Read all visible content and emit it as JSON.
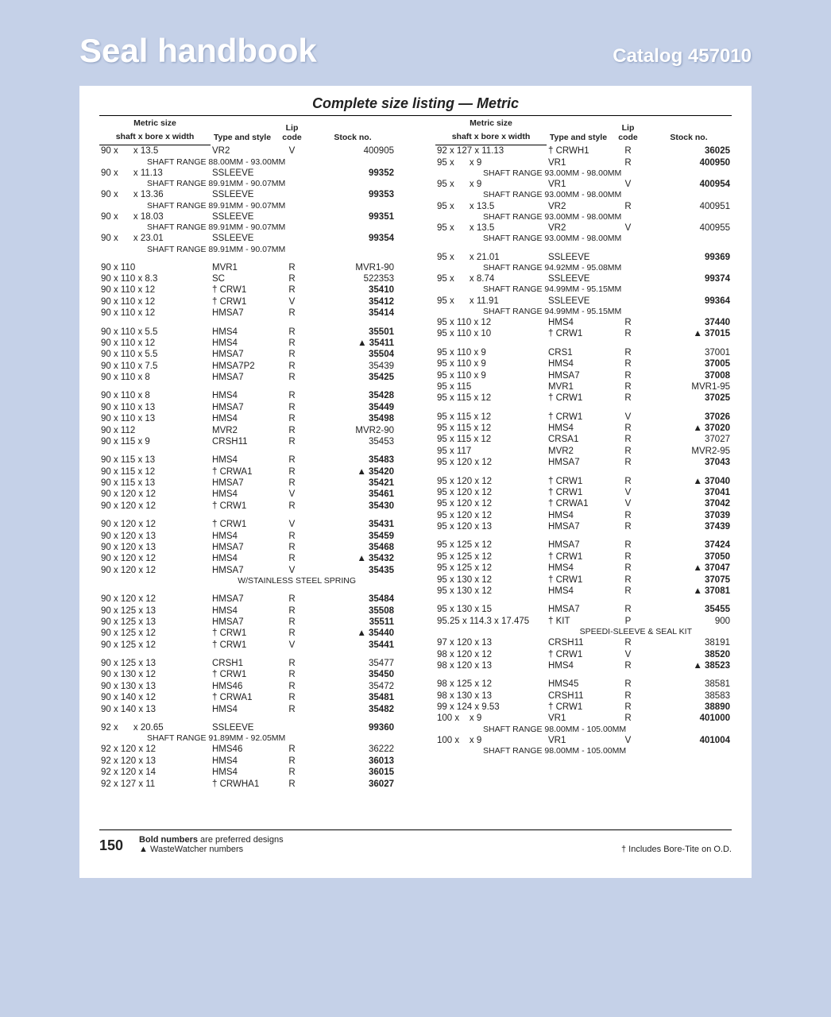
{
  "header": {
    "title": "Seal handbook",
    "catalog": "Catalog 457010"
  },
  "subtitle": "Complete size listing — Metric",
  "columns": {
    "size_label": "Metric size",
    "size_sub": "shaft x bore x width",
    "type_label": "Type and style",
    "lip_label": "Lip code",
    "stock_label": "Stock no."
  },
  "footer": {
    "page": "150",
    "note1": "Bold numbers",
    "note1b": " are preferred designs",
    "note2": "▲ WasteWatcher numbers",
    "note3": "† Includes Bore-Tite on O.D."
  },
  "left": [
    {
      "s": "90 x        x 13.5",
      "t": "VR2",
      "l": "V",
      "n": "400905",
      "b": 0
    },
    {
      "range": "SHAFT RANGE 88.00MM - 93.00MM"
    },
    {
      "s": "90 x        x 11.13",
      "t": "SSLEEVE",
      "l": "",
      "n": "99352",
      "b": 1
    },
    {
      "range": "SHAFT RANGE 89.91MM - 90.07MM"
    },
    {
      "s": "90 x        x 13.36",
      "t": "SSLEEVE",
      "l": "",
      "n": "99353",
      "b": 1
    },
    {
      "range": "SHAFT RANGE 89.91MM - 90.07MM"
    },
    {
      "s": "90 x        x 18.03",
      "t": "SSLEEVE",
      "l": "",
      "n": "99351",
      "b": 1
    },
    {
      "range": "SHAFT RANGE 89.91MM - 90.07MM"
    },
    {
      "s": "90 x        x 23.01",
      "t": "SSLEEVE",
      "l": "",
      "n": "99354",
      "b": 1
    },
    {
      "range": "SHAFT RANGE 89.91MM - 90.07MM"
    },
    {
      "spacer": 1
    },
    {
      "s": "90 x 110",
      "t": "MVR1",
      "l": "R",
      "n": "MVR1-90",
      "b": 0
    },
    {
      "s": "90 x 110 x 8.3",
      "t": "SC",
      "l": "R",
      "n": "522353",
      "b": 0
    },
    {
      "s": "90 x 110 x 12",
      "t": "† CRW1",
      "l": "R",
      "n": "35410",
      "b": 1
    },
    {
      "s": "90 x 110 x 12",
      "t": "† CRW1",
      "l": "V",
      "n": "35412",
      "b": 1
    },
    {
      "s": "90 x 110 x 12",
      "t": "HMSA7",
      "l": "R",
      "n": "35414",
      "b": 1
    },
    {
      "spacer": 1
    },
    {
      "s": "90 x 110 x 5.5",
      "t": "HMS4",
      "l": "R",
      "n": "35501",
      "b": 1
    },
    {
      "s": "90 x 110 x 12",
      "t": "HMS4",
      "l": "R",
      "n": "▲ 35411",
      "b": 1
    },
    {
      "s": "90 x 110 x 5.5",
      "t": "HMSA7",
      "l": "R",
      "n": "35504",
      "b": 1
    },
    {
      "s": "90 x 110 x 7.5",
      "t": "HMSA7P2",
      "l": "R",
      "n": "35439",
      "b": 0
    },
    {
      "s": "90 x 110 x 8",
      "t": "HMSA7",
      "l": "R",
      "n": "35425",
      "b": 1
    },
    {
      "spacer": 1
    },
    {
      "s": "90 x 110 x 8",
      "t": "HMS4",
      "l": "R",
      "n": "35428",
      "b": 1
    },
    {
      "s": "90 x 110 x 13",
      "t": "HMSA7",
      "l": "R",
      "n": "35449",
      "b": 1
    },
    {
      "s": "90 x 110 x 13",
      "t": "HMS4",
      "l": "R",
      "n": "35498",
      "b": 1
    },
    {
      "s": "90 x 112",
      "t": "MVR2",
      "l": "R",
      "n": "MVR2-90",
      "b": 0
    },
    {
      "s": "90 x 115 x 9",
      "t": "CRSH11",
      "l": "R",
      "n": "35453",
      "b": 0
    },
    {
      "spacer": 1
    },
    {
      "s": "90 x 115 x 13",
      "t": "HMS4",
      "l": "R",
      "n": "35483",
      "b": 1
    },
    {
      "s": "90 x 115 x 12",
      "t": "† CRWA1",
      "l": "R",
      "n": "▲ 35420",
      "b": 1
    },
    {
      "s": "90 x 115 x 13",
      "t": "HMSA7",
      "l": "R",
      "n": "35421",
      "b": 1
    },
    {
      "s": "90 x 120 x 12",
      "t": "HMS4",
      "l": "V",
      "n": "35461",
      "b": 1
    },
    {
      "s": "90 x 120 x 12",
      "t": "† CRW1",
      "l": "R",
      "n": "35430",
      "b": 1
    },
    {
      "spacer": 1
    },
    {
      "s": "90 x 120 x 12",
      "t": "† CRW1",
      "l": "V",
      "n": "35431",
      "b": 1
    },
    {
      "s": "90 x 120 x 13",
      "t": "HMS4",
      "l": "R",
      "n": "35459",
      "b": 1
    },
    {
      "s": "90 x 120 x 13",
      "t": "HMSA7",
      "l": "R",
      "n": "35468",
      "b": 1
    },
    {
      "s": "90 x 120 x 12",
      "t": "HMS4",
      "l": "R",
      "n": "▲ 35432",
      "b": 1
    },
    {
      "s": "90 x 120 x 12",
      "t": "HMSA7",
      "l": "V",
      "n": "35435",
      "b": 1
    },
    {
      "note": "W/STAINLESS STEEL SPRING"
    },
    {
      "spacer": 1
    },
    {
      "s": "90 x 120 x 12",
      "t": "HMSA7",
      "l": "R",
      "n": "35484",
      "b": 1
    },
    {
      "s": "90 x 125 x 13",
      "t": "HMS4",
      "l": "R",
      "n": "35508",
      "b": 1
    },
    {
      "s": "90 x 125 x 13",
      "t": "HMSA7",
      "l": "R",
      "n": "35511",
      "b": 1
    },
    {
      "s": "90 x 125 x 12",
      "t": "† CRW1",
      "l": "R",
      "n": "▲ 35440",
      "b": 1
    },
    {
      "s": "90 x 125 x 12",
      "t": "† CRW1",
      "l": "V",
      "n": "35441",
      "b": 1
    },
    {
      "spacer": 1
    },
    {
      "s": "90 x 125 x 13",
      "t": "CRSH1",
      "l": "R",
      "n": "35477",
      "b": 0
    },
    {
      "s": "90 x 130 x 12",
      "t": "† CRW1",
      "l": "R",
      "n": "35450",
      "b": 1
    },
    {
      "s": "90 x 130 x 13",
      "t": "HMS46",
      "l": "R",
      "n": "35472",
      "b": 0
    },
    {
      "s": "90 x 140 x 12",
      "t": "† CRWA1",
      "l": "R",
      "n": "35481",
      "b": 1
    },
    {
      "s": "90 x 140 x 13",
      "t": "HMS4",
      "l": "R",
      "n": "35482",
      "b": 1
    },
    {
      "spacer": 1
    },
    {
      "s": "92 x        x 20.65",
      "t": "SSLEEVE",
      "l": "",
      "n": "99360",
      "b": 1
    },
    {
      "range": "SHAFT RANGE 91.89MM - 92.05MM"
    },
    {
      "s": "92 x 120 x 12",
      "t": "HMS46",
      "l": "R",
      "n": "36222",
      "b": 0
    },
    {
      "s": "92 x 120 x 13",
      "t": "HMS4",
      "l": "R",
      "n": "36013",
      "b": 1
    },
    {
      "s": "92 x 120 x 14",
      "t": "HMS4",
      "l": "R",
      "n": "36015",
      "b": 1
    },
    {
      "s": "92 x 127 x 11",
      "t": "† CRWHA1",
      "l": "R",
      "n": "36027",
      "b": 1
    }
  ],
  "right": [
    {
      "s": "92 x 127 x 11.13",
      "t": "† CRWH1",
      "l": "R",
      "n": "36025",
      "b": 1
    },
    {
      "s": "95 x        x 9",
      "t": "VR1",
      "l": "R",
      "n": "400950",
      "b": 1
    },
    {
      "range": "SHAFT RANGE 93.00MM - 98.00MM"
    },
    {
      "s": "95 x        x 9",
      "t": "VR1",
      "l": "V",
      "n": "400954",
      "b": 1
    },
    {
      "range": "SHAFT RANGE 93.00MM - 98.00MM"
    },
    {
      "s": "95 x        x 13.5",
      "t": "VR2",
      "l": "R",
      "n": "400951",
      "b": 0
    },
    {
      "range": "SHAFT RANGE 93.00MM - 98.00MM"
    },
    {
      "s": "95 x        x 13.5",
      "t": "VR2",
      "l": "V",
      "n": "400955",
      "b": 0
    },
    {
      "range": "SHAFT RANGE 93.00MM - 98.00MM"
    },
    {
      "spacer": 1
    },
    {
      "s": "95 x        x 21.01",
      "t": "SSLEEVE",
      "l": "",
      "n": "99369",
      "b": 1
    },
    {
      "range": "SHAFT RANGE 94.92MM - 95.08MM"
    },
    {
      "s": "95 x        x 8.74",
      "t": "SSLEEVE",
      "l": "",
      "n": "99374",
      "b": 1
    },
    {
      "range": "SHAFT RANGE 94.99MM - 95.15MM"
    },
    {
      "s": "95 x        x 11.91",
      "t": "SSLEEVE",
      "l": "",
      "n": "99364",
      "b": 1
    },
    {
      "range": "SHAFT RANGE 94.99MM - 95.15MM"
    },
    {
      "s": "95 x 110 x 12",
      "t": "HMS4",
      "l": "R",
      "n": "37440",
      "b": 1
    },
    {
      "s": "95 x 110 x 10",
      "t": "† CRW1",
      "l": "R",
      "n": "▲ 37015",
      "b": 1
    },
    {
      "spacer": 1
    },
    {
      "s": "95 x 110 x 9",
      "t": "CRS1",
      "l": "R",
      "n": "37001",
      "b": 0
    },
    {
      "s": "95 x 110 x 9",
      "t": "HMS4",
      "l": "R",
      "n": "37005",
      "b": 1
    },
    {
      "s": "95 x 110 x 9",
      "t": "HMSA7",
      "l": "R",
      "n": "37008",
      "b": 1
    },
    {
      "s": "95 x 115",
      "t": "MVR1",
      "l": "R",
      "n": "MVR1-95",
      "b": 0
    },
    {
      "s": "95 x 115 x 12",
      "t": "† CRW1",
      "l": "R",
      "n": "37025",
      "b": 1
    },
    {
      "spacer": 1
    },
    {
      "s": "95 x 115 x 12",
      "t": "† CRW1",
      "l": "V",
      "n": "37026",
      "b": 1
    },
    {
      "s": "95 x 115 x 12",
      "t": "HMS4",
      "l": "R",
      "n": "▲ 37020",
      "b": 1
    },
    {
      "s": "95 x 115 x 12",
      "t": "CRSA1",
      "l": "R",
      "n": "37027",
      "b": 0
    },
    {
      "s": "95 x 117",
      "t": "MVR2",
      "l": "R",
      "n": "MVR2-95",
      "b": 0
    },
    {
      "s": "95 x 120 x 12",
      "t": "HMSA7",
      "l": "R",
      "n": "37043",
      "b": 1
    },
    {
      "spacer": 1
    },
    {
      "s": "95 x 120 x 12",
      "t": "† CRW1",
      "l": "R",
      "n": "▲ 37040",
      "b": 1
    },
    {
      "s": "95 x 120 x 12",
      "t": "† CRW1",
      "l": "V",
      "n": "37041",
      "b": 1
    },
    {
      "s": "95 x 120 x 12",
      "t": "† CRWA1",
      "l": "V",
      "n": "37042",
      "b": 1
    },
    {
      "s": "95 x 120 x 12",
      "t": "HMS4",
      "l": "R",
      "n": "37039",
      "b": 1
    },
    {
      "s": "95 x 120 x 13",
      "t": "HMSA7",
      "l": "R",
      "n": "37439",
      "b": 1
    },
    {
      "spacer": 1
    },
    {
      "s": "95 x 125 x 12",
      "t": "HMSA7",
      "l": "R",
      "n": "37424",
      "b": 1
    },
    {
      "s": "95 x 125 x 12",
      "t": "† CRW1",
      "l": "R",
      "n": "37050",
      "b": 1
    },
    {
      "s": "95 x 125 x 12",
      "t": "HMS4",
      "l": "R",
      "n": "▲ 37047",
      "b": 1
    },
    {
      "s": "95 x 130 x 12",
      "t": "† CRW1",
      "l": "R",
      "n": "37075",
      "b": 1
    },
    {
      "s": "95 x 130 x 12",
      "t": "HMS4",
      "l": "R",
      "n": "▲ 37081",
      "b": 1
    },
    {
      "spacer": 1
    },
    {
      "s": "95 x 130 x 15",
      "t": "HMSA7",
      "l": "R",
      "n": "35455",
      "b": 1
    },
    {
      "s": "95.25 x 114.3 x 17.475",
      "t": "† KIT",
      "l": "P",
      "n": "900",
      "b": 0
    },
    {
      "note": "SPEEDI-SLEEVE & SEAL KIT"
    },
    {
      "s": "97 x 120 x 13",
      "t": "CRSH11",
      "l": "R",
      "n": "38191",
      "b": 0
    },
    {
      "s": "98 x 120 x 12",
      "t": "† CRW1",
      "l": "V",
      "n": "38520",
      "b": 1
    },
    {
      "s": "98 x 120 x 13",
      "t": "HMS4",
      "l": "R",
      "n": "▲ 38523",
      "b": 1
    },
    {
      "spacer": 1
    },
    {
      "s": "98 x 125 x 12",
      "t": "HMS45",
      "l": "R",
      "n": "38581",
      "b": 0
    },
    {
      "s": "98 x 130 x 13",
      "t": "CRSH11",
      "l": "R",
      "n": "38583",
      "b": 0
    },
    {
      "s": "99 x 124 x 9.53",
      "t": "† CRW1",
      "l": "R",
      "n": "38890",
      "b": 1
    },
    {
      "s": "100 x      x 9",
      "t": "VR1",
      "l": "R",
      "n": "401000",
      "b": 1
    },
    {
      "range": "SHAFT RANGE 98.00MM - 105.00MM"
    },
    {
      "s": "100 x      x 9",
      "t": "VR1",
      "l": "V",
      "n": "401004",
      "b": 1
    },
    {
      "range": "SHAFT RANGE 98.00MM - 105.00MM"
    }
  ]
}
